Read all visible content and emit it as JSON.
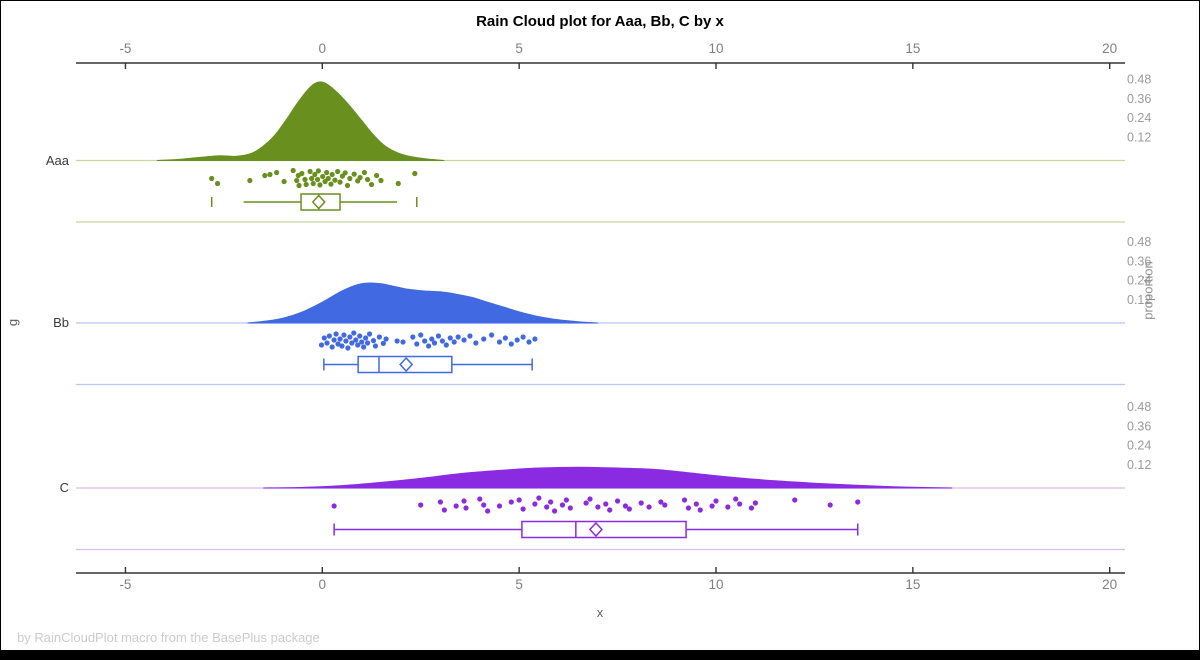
{
  "title": "Rain Cloud plot for Aaa, Bb, C by x",
  "footer": "by RainCloudPlot macro from the BasePlus package",
  "chart_data": {
    "type": "raincloud",
    "x_axis": {
      "label": "x",
      "ticks": [
        -5,
        0,
        5,
        10,
        15,
        20
      ],
      "range": [
        -6.3,
        20.4
      ],
      "shown_top_and_bottom": true
    },
    "y_axis": {
      "label": "g",
      "categories": [
        "Aaa",
        "Bb",
        "C"
      ]
    },
    "right_axis": {
      "label": "proportion",
      "ticks_per_group": [
        0.48,
        0.36,
        0.24,
        0.12
      ]
    },
    "groups": [
      {
        "name": "Aaa",
        "color": "#69901F",
        "tint": "#C7D4A4",
        "density": [
          [
            -4.2,
            0
          ],
          [
            -3.6,
            0.008
          ],
          [
            -3.0,
            0.022
          ],
          [
            -2.6,
            0.03
          ],
          [
            -2.2,
            0.026
          ],
          [
            -1.8,
            0.045
          ],
          [
            -1.5,
            0.09
          ],
          [
            -1.2,
            0.16
          ],
          [
            -0.9,
            0.26
          ],
          [
            -0.6,
            0.37
          ],
          [
            -0.3,
            0.46
          ],
          [
            -0.1,
            0.49
          ],
          [
            0.1,
            0.48
          ],
          [
            0.4,
            0.42
          ],
          [
            0.7,
            0.34
          ],
          [
            1.0,
            0.25
          ],
          [
            1.3,
            0.16
          ],
          [
            1.6,
            0.09
          ],
          [
            2.0,
            0.04
          ],
          [
            2.4,
            0.018
          ],
          [
            2.8,
            0.006
          ],
          [
            3.1,
            0
          ]
        ],
        "box": {
          "whisker_lo": -2.0,
          "q1": -0.54,
          "median": -0.09,
          "mean": -0.09,
          "q3": 0.45,
          "whisker_hi": 1.9,
          "outliers": [
            -2.81,
            2.4
          ],
          "whisker_caps": false
        },
        "points": [
          [
            -2.81,
            0.5
          ],
          [
            -2.66,
            0.75
          ],
          [
            -1.84,
            0.6
          ],
          [
            -1.46,
            0.35
          ],
          [
            -1.33,
            0.3
          ],
          [
            -1.16,
            0.2
          ],
          [
            -0.97,
            0.65
          ],
          [
            -0.74,
            0.1
          ],
          [
            -0.65,
            0.6
          ],
          [
            -0.61,
            0.35
          ],
          [
            -0.59,
            0.85
          ],
          [
            -0.52,
            0.25
          ],
          [
            -0.44,
            0.55
          ],
          [
            -0.41,
            0.8
          ],
          [
            -0.31,
            0.15
          ],
          [
            -0.27,
            0.5
          ],
          [
            -0.23,
            0.75
          ],
          [
            -0.19,
            0.3
          ],
          [
            -0.12,
            0.55
          ],
          [
            -0.1,
            0.12
          ],
          [
            -0.06,
            0.82
          ],
          [
            0.01,
            0.4
          ],
          [
            0.07,
            0.65
          ],
          [
            0.11,
            0.2
          ],
          [
            0.15,
            0.5
          ],
          [
            0.22,
            0.78
          ],
          [
            0.25,
            0.3
          ],
          [
            0.32,
            0.58
          ],
          [
            0.39,
            0.15
          ],
          [
            0.45,
            0.68
          ],
          [
            0.51,
            0.38
          ],
          [
            0.58,
            0.22
          ],
          [
            0.64,
            0.85
          ],
          [
            0.7,
            0.5
          ],
          [
            0.81,
            0.28
          ],
          [
            0.9,
            0.62
          ],
          [
            0.96,
            0.45
          ],
          [
            1.07,
            0.2
          ],
          [
            1.15,
            0.55
          ],
          [
            1.25,
            0.8
          ],
          [
            1.38,
            0.35
          ],
          [
            1.49,
            0.6
          ],
          [
            1.93,
            0.75
          ],
          [
            2.35,
            0.25
          ]
        ]
      },
      {
        "name": "Bb",
        "color": "#4169E1",
        "tint": "#B9C8EF",
        "density": [
          [
            -1.9,
            0
          ],
          [
            -1.5,
            0.01
          ],
          [
            -1.0,
            0.03
          ],
          [
            -0.5,
            0.07
          ],
          [
            0,
            0.13
          ],
          [
            0.5,
            0.2
          ],
          [
            0.9,
            0.24
          ],
          [
            1.2,
            0.25
          ],
          [
            1.5,
            0.245
          ],
          [
            1.8,
            0.23
          ],
          [
            2.2,
            0.21
          ],
          [
            2.6,
            0.2
          ],
          [
            3.0,
            0.195
          ],
          [
            3.4,
            0.18
          ],
          [
            3.8,
            0.16
          ],
          [
            4.2,
            0.13
          ],
          [
            4.6,
            0.1
          ],
          [
            5.0,
            0.07
          ],
          [
            5.5,
            0.04
          ],
          [
            6.0,
            0.02
          ],
          [
            6.5,
            0.008
          ],
          [
            7.0,
            0
          ]
        ],
        "box": {
          "whisker_lo": 0.04,
          "q1": 0.91,
          "median": 1.44,
          "mean": 2.13,
          "q3": 3.29,
          "whisker_hi": 5.33,
          "outliers": [],
          "whisker_caps": true
        },
        "points": [
          [
            -0.02,
            0.7
          ],
          [
            0.05,
            0.35
          ],
          [
            0.12,
            0.6
          ],
          [
            0.18,
            0.25
          ],
          [
            0.25,
            0.8
          ],
          [
            0.3,
            0.45
          ],
          [
            0.35,
            0.15
          ],
          [
            0.4,
            0.65
          ],
          [
            0.45,
            0.4
          ],
          [
            0.5,
            0.75
          ],
          [
            0.55,
            0.2
          ],
          [
            0.6,
            0.5
          ],
          [
            0.65,
            0.85
          ],
          [
            0.7,
            0.3
          ],
          [
            0.75,
            0.6
          ],
          [
            0.8,
            0.1
          ],
          [
            0.85,
            0.45
          ],
          [
            0.9,
            0.7
          ],
          [
            0.95,
            0.25
          ],
          [
            1.0,
            0.55
          ],
          [
            1.05,
            0.8
          ],
          [
            1.1,
            0.35
          ],
          [
            1.15,
            0.6
          ],
          [
            1.2,
            0.15
          ],
          [
            1.3,
            0.48
          ],
          [
            1.35,
            0.75
          ],
          [
            1.45,
            0.3
          ],
          [
            1.55,
            0.62
          ],
          [
            1.62,
            0.4
          ],
          [
            1.9,
            0.5
          ],
          [
            2.05,
            0.55
          ],
          [
            2.3,
            0.3
          ],
          [
            2.4,
            0.65
          ],
          [
            2.5,
            0.2
          ],
          [
            2.6,
            0.5
          ],
          [
            2.7,
            0.75
          ],
          [
            2.78,
            0.4
          ],
          [
            2.85,
            0.6
          ],
          [
            2.95,
            0.25
          ],
          [
            3.05,
            0.5
          ],
          [
            3.15,
            0.7
          ],
          [
            3.25,
            0.35
          ],
          [
            3.35,
            0.55
          ],
          [
            3.45,
            0.3
          ],
          [
            3.6,
            0.45
          ],
          [
            3.75,
            0.25
          ],
          [
            3.9,
            0.6
          ],
          [
            4.1,
            0.4
          ],
          [
            4.3,
            0.2
          ],
          [
            4.5,
            0.55
          ],
          [
            4.65,
            0.35
          ],
          [
            4.8,
            0.65
          ],
          [
            4.95,
            0.45
          ],
          [
            5.1,
            0.3
          ],
          [
            5.25,
            0.55
          ],
          [
            5.4,
            0.4
          ]
        ]
      },
      {
        "name": "C",
        "color": "#8A2BE2",
        "tint": "#D6BAF1",
        "density": [
          [
            -1.5,
            0
          ],
          [
            -0.5,
            0.004
          ],
          [
            0.5,
            0.015
          ],
          [
            1.5,
            0.035
          ],
          [
            2.5,
            0.06
          ],
          [
            3.5,
            0.09
          ],
          [
            4.5,
            0.11
          ],
          [
            5.5,
            0.125
          ],
          [
            6.5,
            0.13
          ],
          [
            7.5,
            0.125
          ],
          [
            8.5,
            0.115
          ],
          [
            9.5,
            0.09
          ],
          [
            10.5,
            0.065
          ],
          [
            11.5,
            0.045
          ],
          [
            12.5,
            0.03
          ],
          [
            13.5,
            0.018
          ],
          [
            14.5,
            0.008
          ],
          [
            15.5,
            0.002
          ],
          [
            16.0,
            0
          ]
        ],
        "box": {
          "whisker_lo": 0.3,
          "q1": 5.07,
          "median": 6.44,
          "mean": 6.95,
          "q3": 9.24,
          "whisker_hi": 13.6,
          "outliers": [],
          "whisker_caps": true
        },
        "points": [
          [
            0.3,
            0.5
          ],
          [
            2.5,
            0.45
          ],
          [
            3.0,
            0.3
          ],
          [
            3.1,
            0.7
          ],
          [
            3.4,
            0.5
          ],
          [
            3.6,
            0.25
          ],
          [
            3.65,
            0.6
          ],
          [
            4.0,
            0.15
          ],
          [
            4.1,
            0.45
          ],
          [
            4.2,
            0.75
          ],
          [
            4.5,
            0.5
          ],
          [
            4.8,
            0.3
          ],
          [
            5.0,
            0.2
          ],
          [
            5.1,
            0.65
          ],
          [
            5.4,
            0.4
          ],
          [
            5.5,
            0.1
          ],
          [
            5.7,
            0.55
          ],
          [
            5.8,
            0.3
          ],
          [
            5.9,
            0.75
          ],
          [
            6.1,
            0.45
          ],
          [
            6.2,
            0.2
          ],
          [
            6.3,
            0.6
          ],
          [
            6.7,
            0.35
          ],
          [
            6.8,
            0.15
          ],
          [
            7.0,
            0.55
          ],
          [
            7.2,
            0.4
          ],
          [
            7.3,
            0.7
          ],
          [
            7.5,
            0.25
          ],
          [
            7.7,
            0.5
          ],
          [
            7.8,
            0.65
          ],
          [
            8.1,
            0.35
          ],
          [
            8.3,
            0.55
          ],
          [
            8.6,
            0.3
          ],
          [
            8.7,
            0.45
          ],
          [
            9.2,
            0.2
          ],
          [
            9.3,
            0.6
          ],
          [
            9.5,
            0.4
          ],
          [
            9.6,
            0.7
          ],
          [
            9.9,
            0.5
          ],
          [
            10.0,
            0.25
          ],
          [
            10.3,
            0.55
          ],
          [
            10.5,
            0.15
          ],
          [
            10.6,
            0.4
          ],
          [
            10.9,
            0.6
          ],
          [
            11.0,
            0.35
          ],
          [
            12.0,
            0.2
          ],
          [
            12.9,
            0.45
          ],
          [
            13.6,
            0.3
          ]
        ]
      }
    ],
    "layout_hints": {
      "grid": false,
      "legend": "none",
      "density_above_baseline": true,
      "points_and_box_below_baseline": true
    }
  },
  "colors": {
    "axis_line": "#333333",
    "tick_label": "#808080",
    "prop_label": "#9a9a9a",
    "category_label": "#3b3b3b",
    "footer": "#cbcbcb",
    "bottom_bar": "#000000"
  }
}
